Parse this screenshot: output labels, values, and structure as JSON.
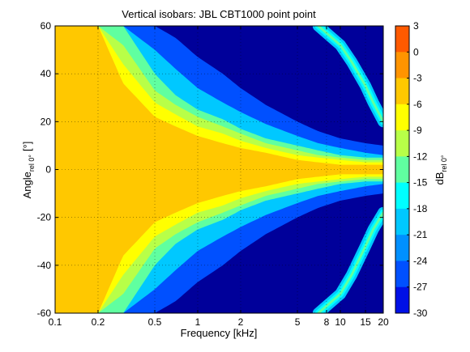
{
  "chart_data": {
    "type": "heatmap",
    "title": "Vertical isobars: JBL  CBT1000  point point",
    "xlabel": "Frequency [kHz]",
    "ylabel_main": "Angle",
    "ylabel_sub": "rel 0°",
    "ylabel_unit": "[°]",
    "colorbar_label_main": "dB",
    "colorbar_label_sub": "rel 0°",
    "x_scale": "log",
    "xlim": [
      0.1,
      20
    ],
    "ylim": [
      -60,
      60
    ],
    "x_ticks": [
      0.1,
      0.2,
      0.5,
      1,
      2,
      5,
      8,
      10,
      15,
      20
    ],
    "x_tick_labels": [
      "0.1",
      "0.2",
      "0.5",
      "1",
      "2",
      "5",
      "8",
      "10",
      "15",
      "20"
    ],
    "y_ticks": [
      60,
      40,
      20,
      0,
      -20,
      -40,
      -60
    ],
    "y_tick_labels": [
      "60",
      "40",
      "20",
      "0",
      "-20",
      "-40",
      "-60"
    ],
    "grid": true,
    "colorbar_ticks": [
      3,
      0,
      -3,
      -6,
      -9,
      -12,
      -15,
      -18,
      -21,
      -24,
      -27,
      -30
    ],
    "colorbar_tick_labels": [
      "3",
      "0",
      "-3",
      "-6",
      "-9",
      "-12",
      "-15",
      "-18",
      "-21",
      "-24",
      "-27",
      "-30"
    ],
    "levels": [
      3,
      0,
      -3,
      -6,
      -9,
      -12,
      -15,
      -18,
      -21,
      -24,
      -27,
      -30
    ],
    "colors": [
      "#ff5a00",
      "#ff9400",
      "#ffc800",
      "#ffff00",
      "#b8ff48",
      "#60ffa0",
      "#00ffff",
      "#00c8ff",
      "#0090ff",
      "#0050ff",
      "#0010e6",
      "#00009a"
    ],
    "isobar_half_width_deg": {
      "freq_khz": [
        0.1,
        0.15,
        0.2,
        0.3,
        0.5,
        0.7,
        1,
        1.5,
        2,
        3,
        5,
        7,
        10,
        15,
        20
      ],
      "minus3": [
        60,
        60,
        60,
        36,
        22,
        18,
        14,
        11,
        9,
        7,
        4,
        3,
        2,
        2,
        2
      ],
      "minus6": [
        60,
        60,
        60,
        44,
        28,
        23,
        18,
        15,
        12,
        9,
        6,
        5,
        4,
        3,
        3
      ],
      "minus9": [
        60,
        60,
        60,
        52,
        33,
        27,
        22,
        18,
        15,
        11,
        8,
        6,
        5,
        4,
        4
      ],
      "minus12": [
        60,
        60,
        60,
        60,
        40,
        31,
        25,
        21,
        17,
        13,
        10,
        8,
        6,
        5,
        5
      ],
      "minus18": [
        60,
        60,
        60,
        60,
        50,
        42,
        34,
        28,
        24,
        19,
        14,
        11,
        9,
        7,
        6
      ],
      "minus24": [
        60,
        60,
        60,
        60,
        60,
        55,
        47,
        40,
        34,
        27,
        20,
        16,
        13,
        11,
        10
      ]
    },
    "lobes": [
      {
        "freq_khz": [
          7,
          10,
          12,
          15,
          17,
          20
        ],
        "angle_deg": [
          60,
          52,
          45,
          35,
          28,
          20
        ],
        "level_db": -12
      },
      {
        "freq_khz": [
          7,
          10,
          12,
          15,
          17,
          20
        ],
        "angle_deg": [
          -60,
          -52,
          -44,
          -32,
          -25,
          -18
        ],
        "level_db": -12
      }
    ]
  }
}
